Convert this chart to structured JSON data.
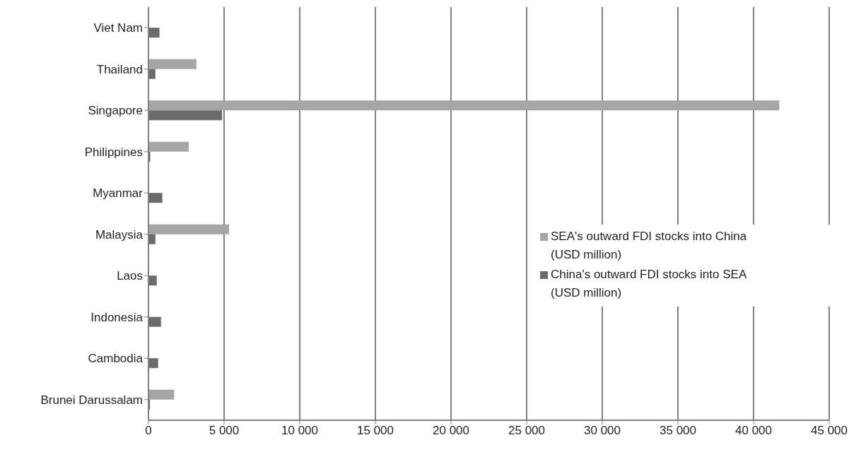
{
  "chart_data": {
    "type": "bar",
    "orientation": "horizontal",
    "categories": [
      "Viet Nam",
      "Thailand",
      "Singapore",
      "Philippines",
      "Myanmar",
      "Malaysia",
      "Laos",
      "Indonesia",
      "Cambodia",
      "Brunei Darussalam"
    ],
    "series": [
      {
        "name": "SEA's outward FDI stocks into China (USD million)",
        "color": "#a6a6a6",
        "values": [
          null,
          3170,
          41700,
          2660,
          null,
          5330,
          null,
          null,
          null,
          1700
        ]
      },
      {
        "name": "China's outward FDI stocks into SEA (USD million)",
        "color": "#6b6b6b",
        "values": [
          730,
          460,
          4870,
          120,
          920,
          460,
          550,
          830,
          640,
          100
        ]
      }
    ],
    "xlim": [
      0,
      45000
    ],
    "xticks": [
      0,
      {
        "value": 5000,
        "label": "5 000"
      },
      {
        "value": 10000,
        "label": "10 000"
      },
      {
        "value": 15000,
        "label": "15 000"
      },
      {
        "value": 20000,
        "label": "20 000"
      },
      {
        "value": 25000,
        "label": "25 000"
      },
      {
        "value": 30000,
        "label": "30 000"
      },
      {
        "value": 35000,
        "label": "35 000"
      },
      {
        "value": 40000,
        "label": "40 000"
      },
      {
        "value": 45000,
        "label": "45 000"
      }
    ],
    "grid": "x",
    "legend": "right"
  }
}
